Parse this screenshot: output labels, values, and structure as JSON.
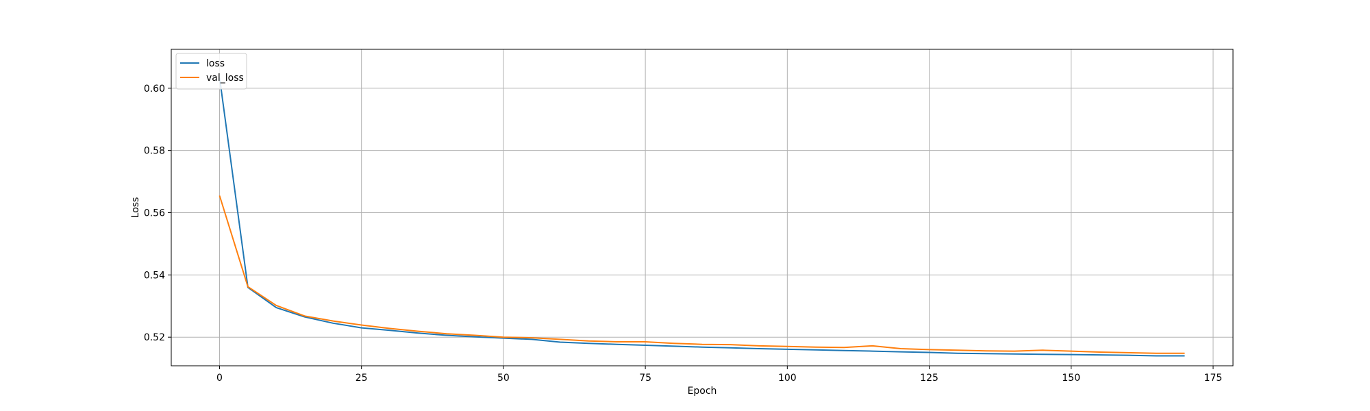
{
  "chart_data": {
    "type": "line",
    "title": "",
    "xlabel": "Epoch",
    "ylabel": "Loss",
    "xlim": [
      -8.5,
      178.5
    ],
    "ylim": [
      0.5108,
      0.6125
    ],
    "xticks": [
      0,
      25,
      50,
      75,
      100,
      125,
      150,
      175
    ],
    "xtick_labels": [
      "0",
      "25",
      "50",
      "75",
      "100",
      "125",
      "150",
      "175"
    ],
    "yticks": [
      0.52,
      0.54,
      0.56,
      0.58,
      0.6
    ],
    "ytick_labels": [
      "0.52",
      "0.54",
      "0.56",
      "0.58",
      "0.60"
    ],
    "grid": true,
    "legend_position": "top-left",
    "x": [
      0,
      5,
      10,
      15,
      20,
      25,
      30,
      35,
      40,
      45,
      50,
      55,
      60,
      65,
      70,
      75,
      80,
      85,
      90,
      95,
      100,
      105,
      110,
      115,
      120,
      125,
      130,
      135,
      140,
      145,
      150,
      155,
      160,
      165,
      170
    ],
    "series": [
      {
        "name": "loss",
        "color": "#1f77b4",
        "values": [
          0.6035,
          0.536,
          0.5295,
          0.5265,
          0.5245,
          0.523,
          0.5222,
          0.5213,
          0.5206,
          0.5201,
          0.5197,
          0.5193,
          0.5184,
          0.518,
          0.5177,
          0.5174,
          0.5171,
          0.5168,
          0.5166,
          0.5163,
          0.5161,
          0.5159,
          0.5157,
          0.5155,
          0.5153,
          0.5151,
          0.5148,
          0.5147,
          0.5146,
          0.5145,
          0.5144,
          0.5143,
          0.5142,
          0.514,
          0.514
        ]
      },
      {
        "name": "val_loss",
        "color": "#ff7f0e",
        "values": [
          0.5655,
          0.5362,
          0.5302,
          0.5268,
          0.5252,
          0.5239,
          0.5228,
          0.5219,
          0.5211,
          0.5206,
          0.52,
          0.5198,
          0.5193,
          0.5188,
          0.5185,
          0.5185,
          0.518,
          0.5177,
          0.5176,
          0.5172,
          0.517,
          0.5168,
          0.5167,
          0.5172,
          0.5163,
          0.516,
          0.5158,
          0.5156,
          0.5155,
          0.5158,
          0.5155,
          0.5152,
          0.515,
          0.5148,
          0.5148
        ]
      }
    ]
  }
}
